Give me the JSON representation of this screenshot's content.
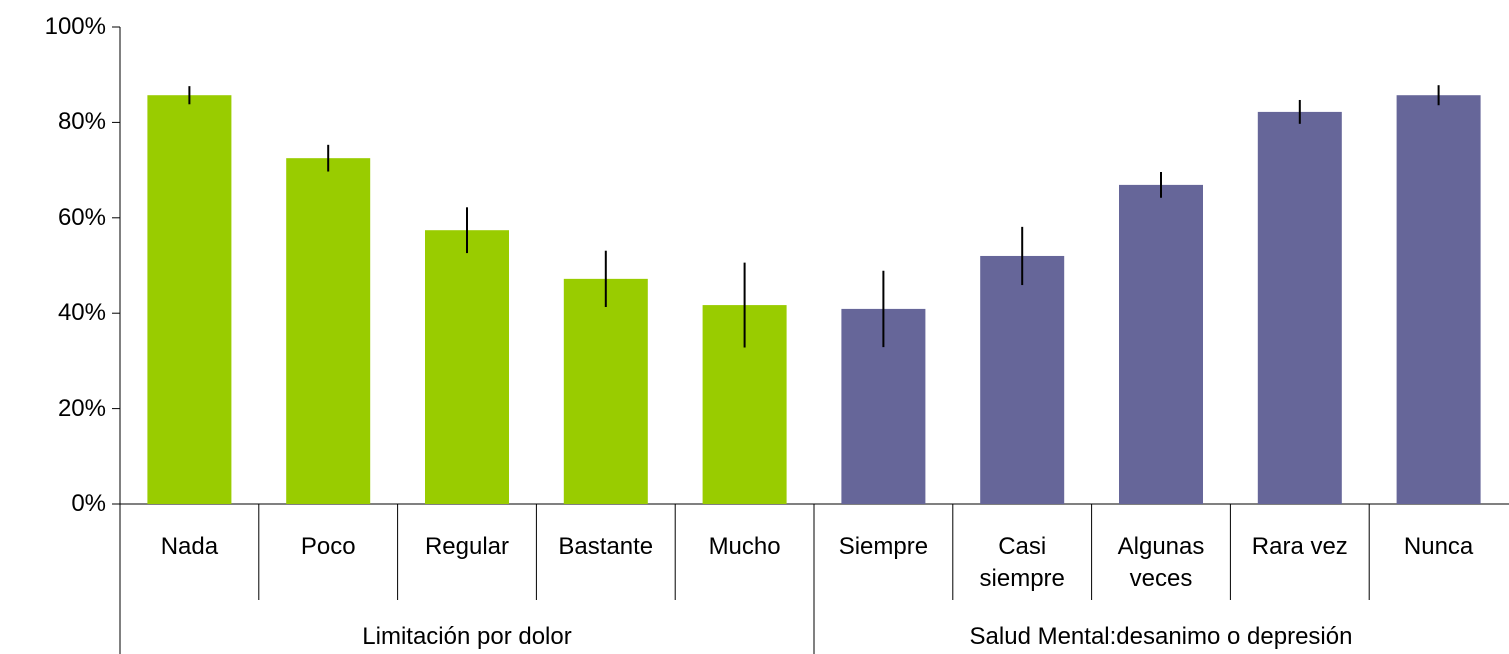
{
  "chart_data": {
    "type": "bar",
    "ylim": [
      0,
      100
    ],
    "yticks": [
      {
        "value": 0,
        "label": "0%"
      },
      {
        "value": 20,
        "label": "20%"
      },
      {
        "value": 40,
        "label": "40%"
      },
      {
        "value": 60,
        "label": "60%"
      },
      {
        "value": 80,
        "label": "80%"
      },
      {
        "value": 100,
        "label": "100%"
      }
    ],
    "groups": [
      {
        "name": "Limitación por dolor",
        "color": "#99cc00",
        "categories": [
          "Nada",
          "Poco",
          "Regular",
          "Bastante",
          "Mucho"
        ],
        "values": [
          85.7,
          72.5,
          57.4,
          47.2,
          41.7
        ],
        "errors": [
          1.9,
          2.8,
          4.8,
          5.9,
          8.9
        ]
      },
      {
        "name": "Salud Mental:desanimo o depresión",
        "color": "#666699",
        "categories": [
          "Siempre",
          "Casi siempre",
          "Algunas veces",
          "Rara vez",
          "Nunca"
        ],
        "values": [
          40.9,
          52.0,
          66.9,
          82.2,
          85.7
        ],
        "errors": [
          8.0,
          6.1,
          2.7,
          2.5,
          2.1
        ]
      }
    ]
  }
}
